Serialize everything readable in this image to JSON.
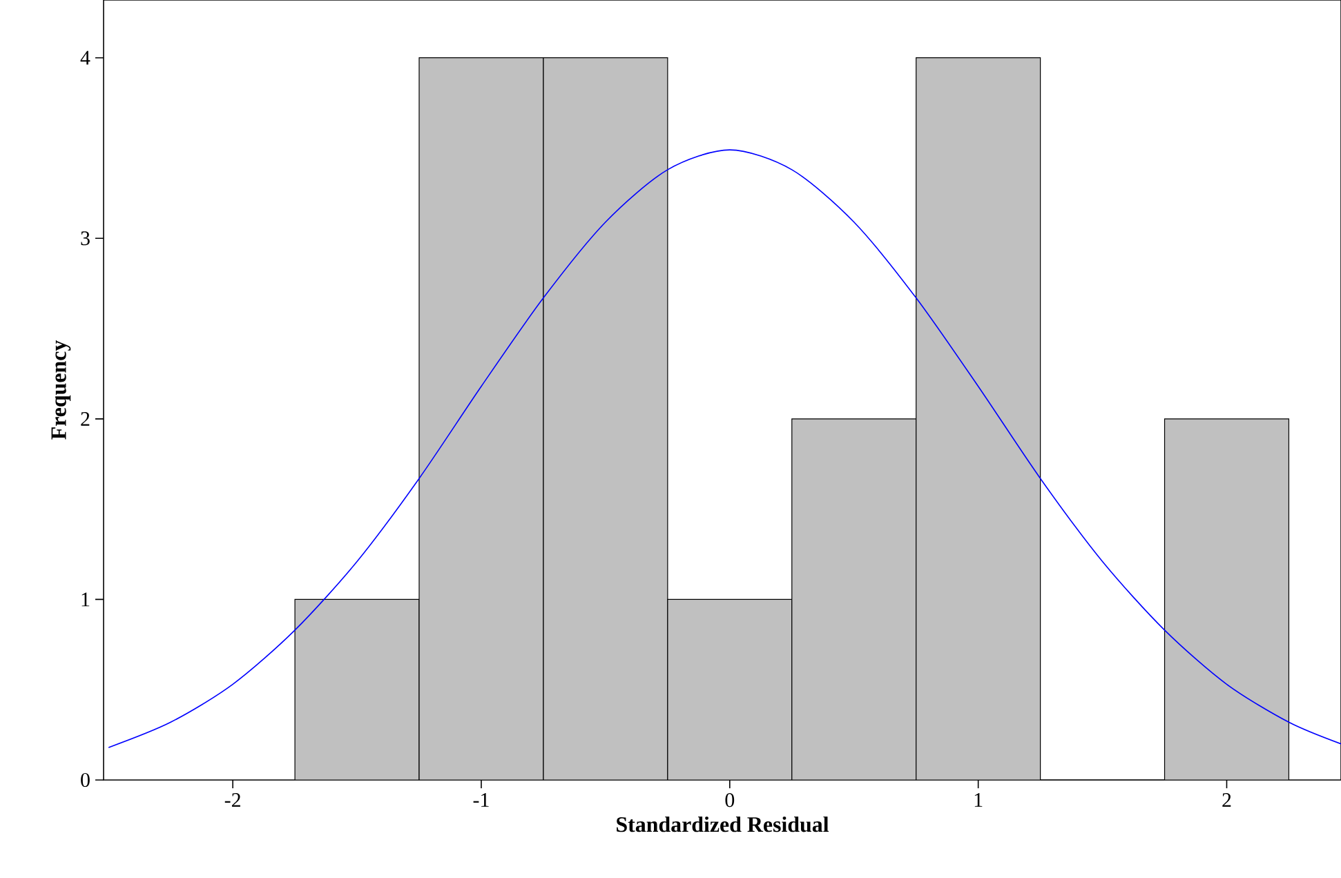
{
  "chart_data": {
    "type": "histogram",
    "xlabel": "Standardized Residual",
    "ylabel": "Frequency",
    "xlim": [
      -2.52,
      2.46
    ],
    "ylim": [
      0,
      4.32
    ],
    "xticks": [
      -2,
      -1,
      0,
      1,
      2
    ],
    "yticks": [
      0,
      1,
      2,
      3,
      4
    ],
    "grid": false,
    "series": [
      {
        "color": "#c0c0c0",
        "bins": [
          -1.75,
          -1.25,
          -0.75,
          -0.25,
          0.25,
          0.75,
          1.25,
          1.75,
          2.25
        ],
        "values": [
          1,
          4,
          4,
          1,
          2,
          4,
          0,
          2
        ]
      },
      {
        "type": "line",
        "color": "#0000ff",
        "x": [
          -2.5,
          -2.25,
          -2.0,
          -1.75,
          -1.5,
          -1.25,
          -1.0,
          -0.75,
          -0.5,
          -0.25,
          0,
          0.25,
          0.5,
          0.75,
          1.0,
          1.25,
          1.5,
          1.75,
          2.0,
          2.25,
          2.46
        ],
        "values": [
          0.18,
          0.32,
          0.53,
          0.83,
          1.21,
          1.67,
          2.18,
          2.67,
          3.09,
          3.38,
          3.49,
          3.38,
          3.09,
          2.67,
          2.18,
          1.67,
          1.21,
          0.83,
          0.53,
          0.32,
          0.2
        ]
      }
    ]
  }
}
